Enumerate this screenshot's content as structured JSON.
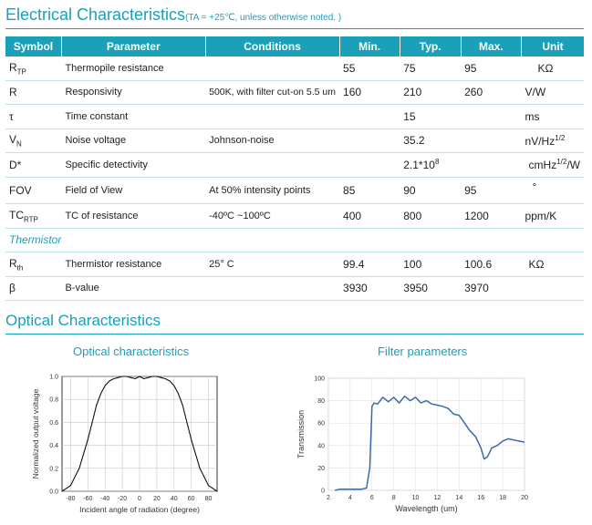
{
  "electrical": {
    "title": "Electrical Characteristics",
    "note": "(TA = +25℃, unless otherwise noted. )"
  },
  "table": {
    "headers": [
      "Symbol",
      "Parameter",
      "Conditions",
      "Min.",
      "Typ.",
      "Max.",
      "Unit"
    ],
    "rows": [
      {
        "sym": "R",
        "sub": "TP",
        "sup": "",
        "param": "Thermopile resistance",
        "cond": "",
        "min": "55",
        "typ": "75",
        "max": "95",
        "unit": "KΩ",
        "unit_sup": "",
        "unit_tail": ""
      },
      {
        "sym": "R",
        "sub": "",
        "sup": "",
        "param": "Responsivity",
        "cond": "500K, with filter cut-on 5.5 um",
        "min": "160",
        "typ": "210",
        "max": "260",
        "unit": "V/W",
        "unit_sup": "",
        "unit_tail": ""
      },
      {
        "sym": "τ",
        "sub": "",
        "sup": "",
        "param": "Time constant",
        "cond": "",
        "min": "",
        "typ": "15",
        "max": "",
        "unit": "ms",
        "unit_sup": "",
        "unit_tail": ""
      },
      {
        "sym": "V",
        "sub": "N",
        "sup": "",
        "param": "Noise voltage",
        "cond": "Johnson-noise",
        "min": "",
        "typ": "35.2",
        "max": "",
        "unit": "nV/Hz",
        "unit_sup": "1/2",
        "unit_tail": ""
      },
      {
        "sym": "D*",
        "sub": "",
        "sup": "",
        "param": "Specific detectivity",
        "cond": "",
        "min": "",
        "typ": "2.1*10",
        "typ_sup": "8",
        "max": "",
        "unit": "cmHz",
        "unit_sup": "1/2",
        "unit_tail": "/W"
      },
      {
        "sym": "FOV",
        "sub": "",
        "sup": "",
        "param": "Field of View",
        "cond": "At 50% intensity points",
        "min": "85",
        "typ": "90",
        "max": "95",
        "unit": "°",
        "unit_sup": "",
        "unit_tail": ""
      },
      {
        "sym": "TC",
        "sub": "RTP",
        "sup": "",
        "param": "TC of resistance",
        "cond": "-40ºC ~100ºC",
        "min": "400",
        "typ": "800",
        "max": "1200",
        "unit": "ppm/K",
        "unit_sup": "",
        "unit_tail": ""
      }
    ],
    "section": "Thermistor",
    "rows2": [
      {
        "sym": "R",
        "sub": "th",
        "param": "Thermistor resistance",
        "cond": "25°  C",
        "min": "99.4",
        "typ": "100",
        "max": "100.6",
        "unit": "KΩ"
      },
      {
        "sym": "β",
        "sub": "",
        "param": "B-value",
        "cond": "",
        "min": "3930",
        "typ": "3950",
        "max": "3970",
        "unit": ""
      }
    ]
  },
  "optical": {
    "title": "Optical Characteristics",
    "fig1_title": "Optical characteristics",
    "fig2_title": "Filter parameters"
  },
  "chart_data": [
    {
      "type": "line",
      "title": "Optical characteristics",
      "xlabel": "Incident angle of radiation (degree)",
      "ylabel": "Normalized output voltage",
      "xlim": [
        -90,
        90
      ],
      "ylim": [
        0,
        1.0
      ],
      "xticks": [
        "-80",
        "-60",
        "-40",
        "-20",
        "0",
        "20",
        "40",
        "60",
        "80"
      ],
      "yticks": [
        "0.0",
        "0.2",
        "0.4",
        "0.6",
        "0.8",
        "1.0"
      ],
      "grid": true,
      "x": [
        -90,
        -80,
        -70,
        -60,
        -55,
        -50,
        -45,
        -40,
        -35,
        -30,
        -25,
        -20,
        -15,
        -10,
        -5,
        0,
        5,
        10,
        15,
        20,
        25,
        30,
        35,
        40,
        45,
        50,
        55,
        60,
        70,
        80,
        90
      ],
      "y": [
        0.0,
        0.05,
        0.2,
        0.45,
        0.6,
        0.75,
        0.85,
        0.92,
        0.96,
        0.98,
        0.99,
        1.0,
        1.0,
        0.99,
        0.98,
        1.0,
        0.98,
        0.99,
        1.0,
        1.0,
        0.99,
        0.98,
        0.96,
        0.92,
        0.85,
        0.75,
        0.6,
        0.45,
        0.2,
        0.05,
        0.0
      ]
    },
    {
      "type": "line",
      "title": "Filter parameters",
      "xlabel": "Wavelength (um)",
      "ylabel": "Transmission",
      "xlim": [
        2,
        20
      ],
      "ylim": [
        0,
        100
      ],
      "xticks": [
        "2",
        "4",
        "6",
        "8",
        "10",
        "12",
        "14",
        "16",
        "18",
        "20"
      ],
      "yticks": [
        "0",
        "20",
        "40",
        "60",
        "80",
        "100"
      ],
      "grid": true,
      "x": [
        2.6,
        3,
        4,
        5,
        5.5,
        5.8,
        6.0,
        6.2,
        6.5,
        7.0,
        7.5,
        8.0,
        8.5,
        9.0,
        9.5,
        10.0,
        10.5,
        11.0,
        11.5,
        12.0,
        12.5,
        13.0,
        13.5,
        14.0,
        14.5,
        15.0,
        15.5,
        16.0,
        16.3,
        16.6,
        17.0,
        17.5,
        18.0,
        18.5,
        19.0,
        19.5,
        20.0
      ],
      "y": [
        0,
        1,
        1,
        1,
        2,
        20,
        75,
        78,
        77,
        83,
        79,
        83,
        78,
        84,
        80,
        83,
        78,
        80,
        77,
        76,
        75,
        73,
        68,
        67,
        60,
        53,
        48,
        38,
        28,
        30,
        38,
        40,
        44,
        46,
        45,
        44,
        43
      ]
    }
  ]
}
